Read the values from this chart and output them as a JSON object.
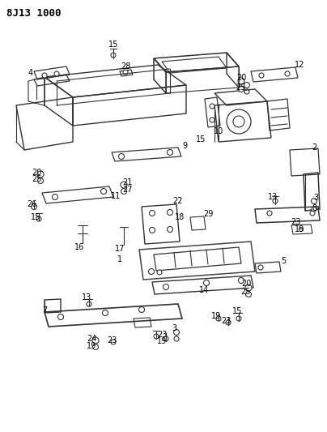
{
  "title": "8J13 1000",
  "bg_color": "#ffffff",
  "line_color": "#333333",
  "title_fontsize": 9,
  "label_fontsize": 7,
  "figsize": [
    4.04,
    5.33
  ],
  "dpi": 100
}
